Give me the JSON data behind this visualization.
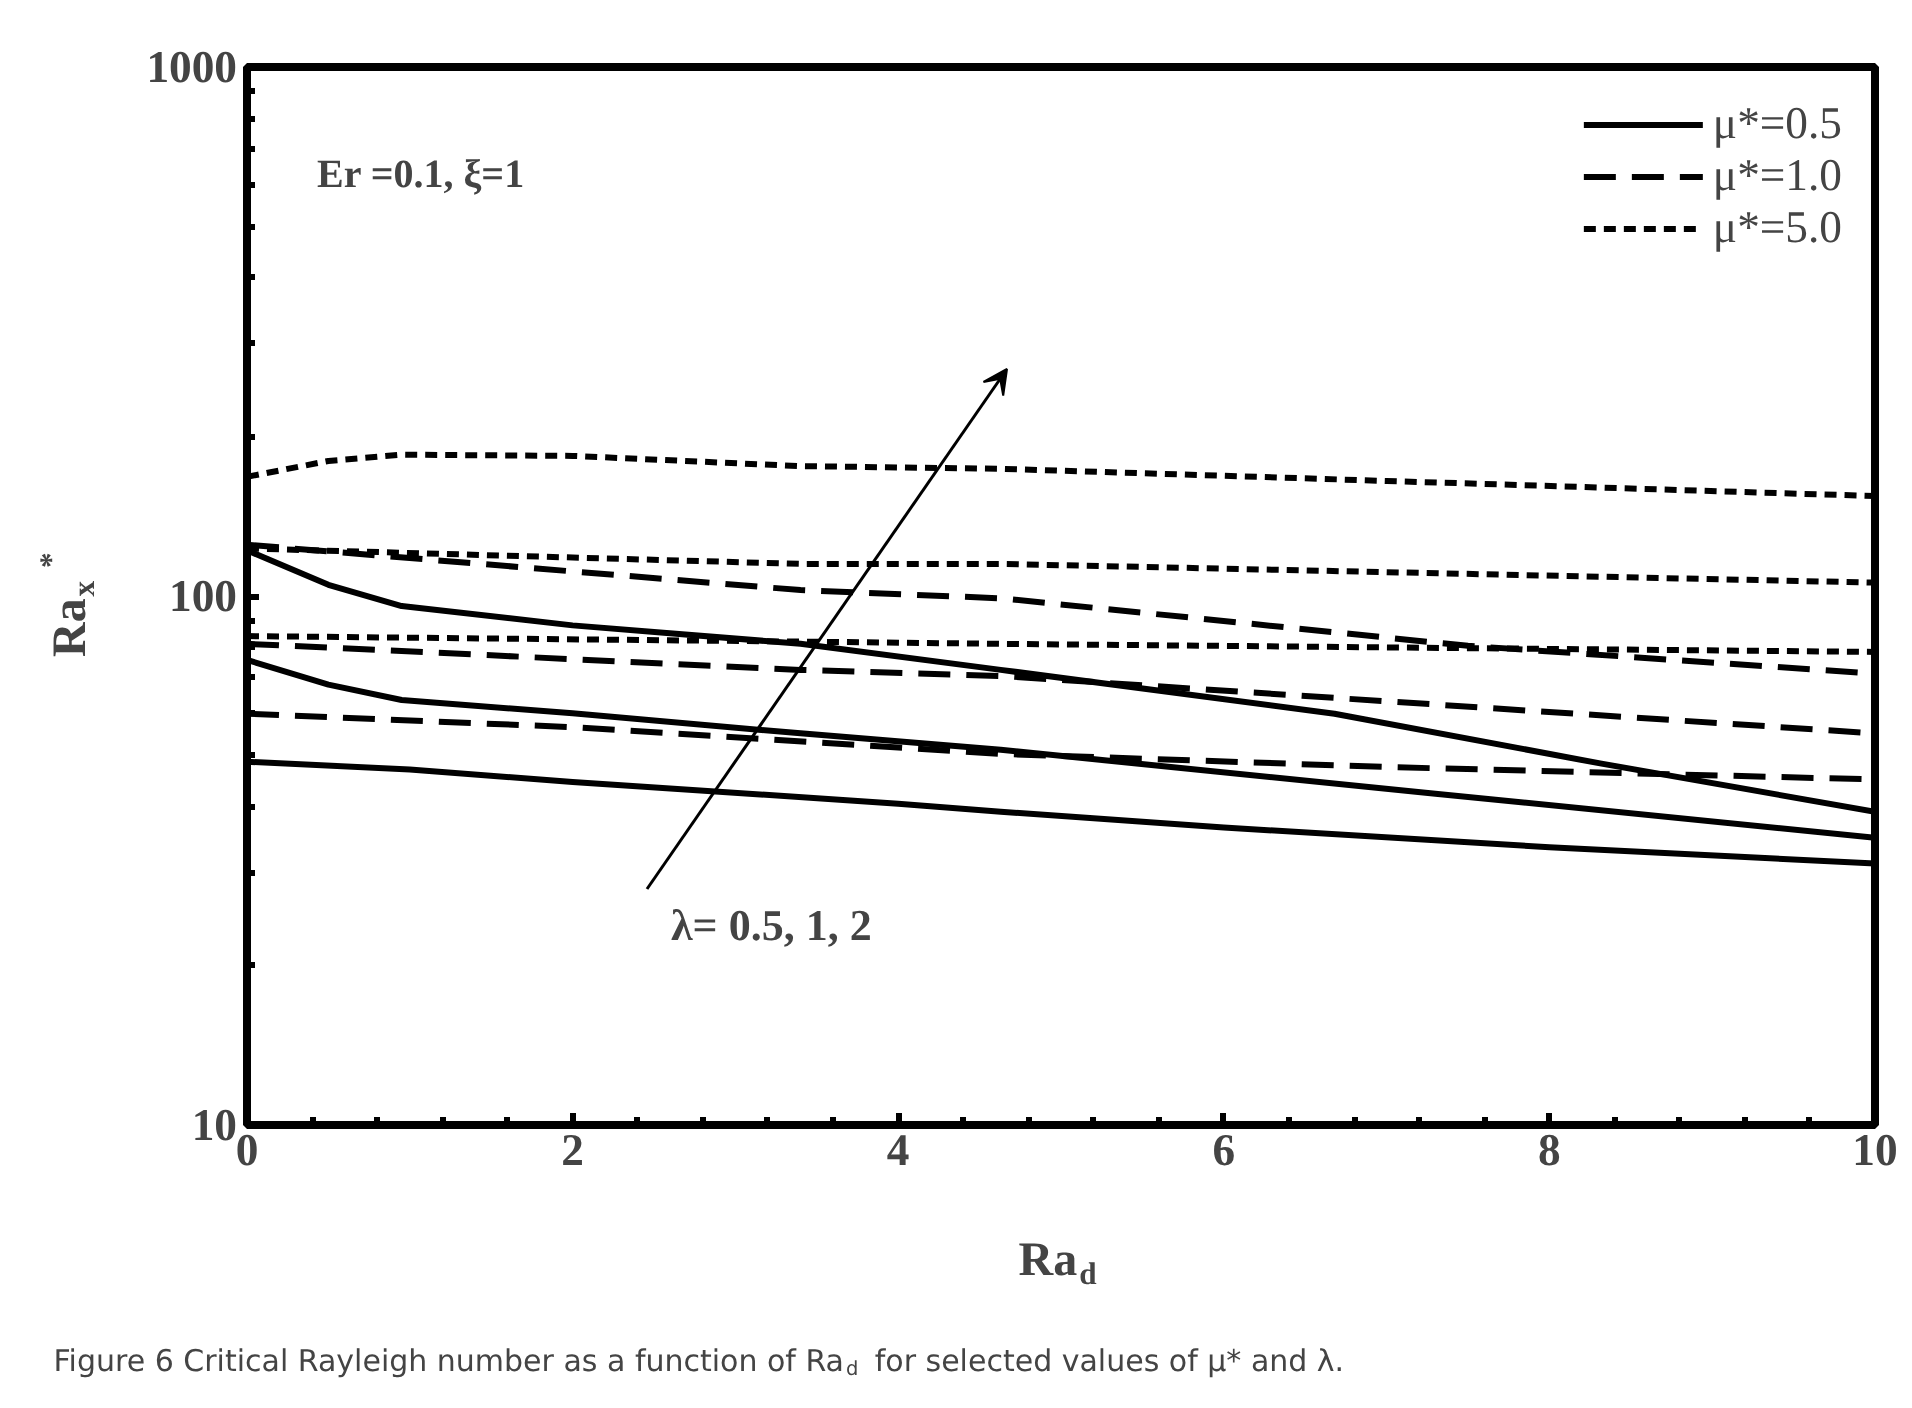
{
  "chart_data": {
    "type": "line",
    "xlabel": "Ra$_{d}$",
    "ylabel": "Ra$_{x}$$^{*}$",
    "log": "y",
    "xlim": [
      0,
      10
    ],
    "ylim": [
      10,
      1000
    ],
    "xticks": [
      0,
      2,
      4,
      6,
      8,
      10
    ],
    "yticks": [
      10,
      100,
      1000
    ],
    "grid": false,
    "legend": "top right",
    "marker": "none",
    "series": [
      {
        "name": "μ*=0.5",
        "color": "#000000",
        "line_style": "solid",
        "x": [
          0,
          1,
          2,
          4,
          4.63,
          6,
          8,
          10
        ],
        "values": [
          48.6,
          47,
          44.5,
          40.5,
          39.1,
          36.5,
          33.5,
          31.2
        ]
      },
      {
        "color": "#000000",
        "line_style": "solid",
        "x": [
          0,
          0.5,
          0.95,
          2,
          3.4,
          4.63,
          7.3,
          10
        ],
        "values": [
          75.7,
          68,
          63.6,
          60,
          55,
          51.2,
          42.3,
          34.9
        ]
      },
      {
        "color": "#000000",
        "line_style": "solid",
        "x": [
          0,
          0.5,
          0.95,
          2,
          3.4,
          4.63,
          6.68,
          8.32,
          10
        ],
        "values": [
          122,
          105,
          95.7,
          88,
          81.2,
          72.5,
          59.9,
          48.2,
          39.1
        ]
      },
      {
        "name": "μ*=1.0",
        "color": "#000000",
        "line_style": "dashed",
        "x": [
          0,
          2,
          4.63,
          7,
          10
        ],
        "values": [
          59.9,
          56.5,
          50.3,
          47.5,
          45
        ]
      },
      {
        "color": "#000000",
        "line_style": "dashed",
        "x": [
          0,
          3.4,
          4.63,
          10
        ],
        "values": [
          81.2,
          72.5,
          70.6,
          55
        ]
      },
      {
        "color": "#000000",
        "line_style": "dashed",
        "x": [
          0,
          3.4,
          4.63,
          7.5,
          10
        ],
        "values": [
          125,
          102.6,
          99,
          80.5,
          71.3
        ]
      },
      {
        "name": "μ*=5.0",
        "color": "#000000",
        "line_style": "dotted",
        "x": [
          0,
          3.4,
          4.63,
          10
        ],
        "values": [
          84,
          82,
          81.2,
          78.4
        ]
      },
      {
        "color": "#000000",
        "line_style": "dotted",
        "x": [
          0,
          3.4,
          4.63,
          10
        ],
        "values": [
          123,
          115,
          115,
          106
        ]
      },
      {
        "color": "#000000",
        "line_style": "dotted",
        "x": [
          0,
          0.5,
          0.95,
          2,
          3.4,
          4.63,
          7,
          10
        ],
        "values": [
          168,
          180,
          185,
          184,
          176,
          174,
          165,
          154.5
        ]
      }
    ],
    "annotations": [
      "Er =0.1, ξ=1",
      "λ= 0.5,  1,  2",
      "Figure 6 Critical Rayleigh number as a function of Ra$_{d}$ for selected values of μ* and λ."
    ]
  }
}
